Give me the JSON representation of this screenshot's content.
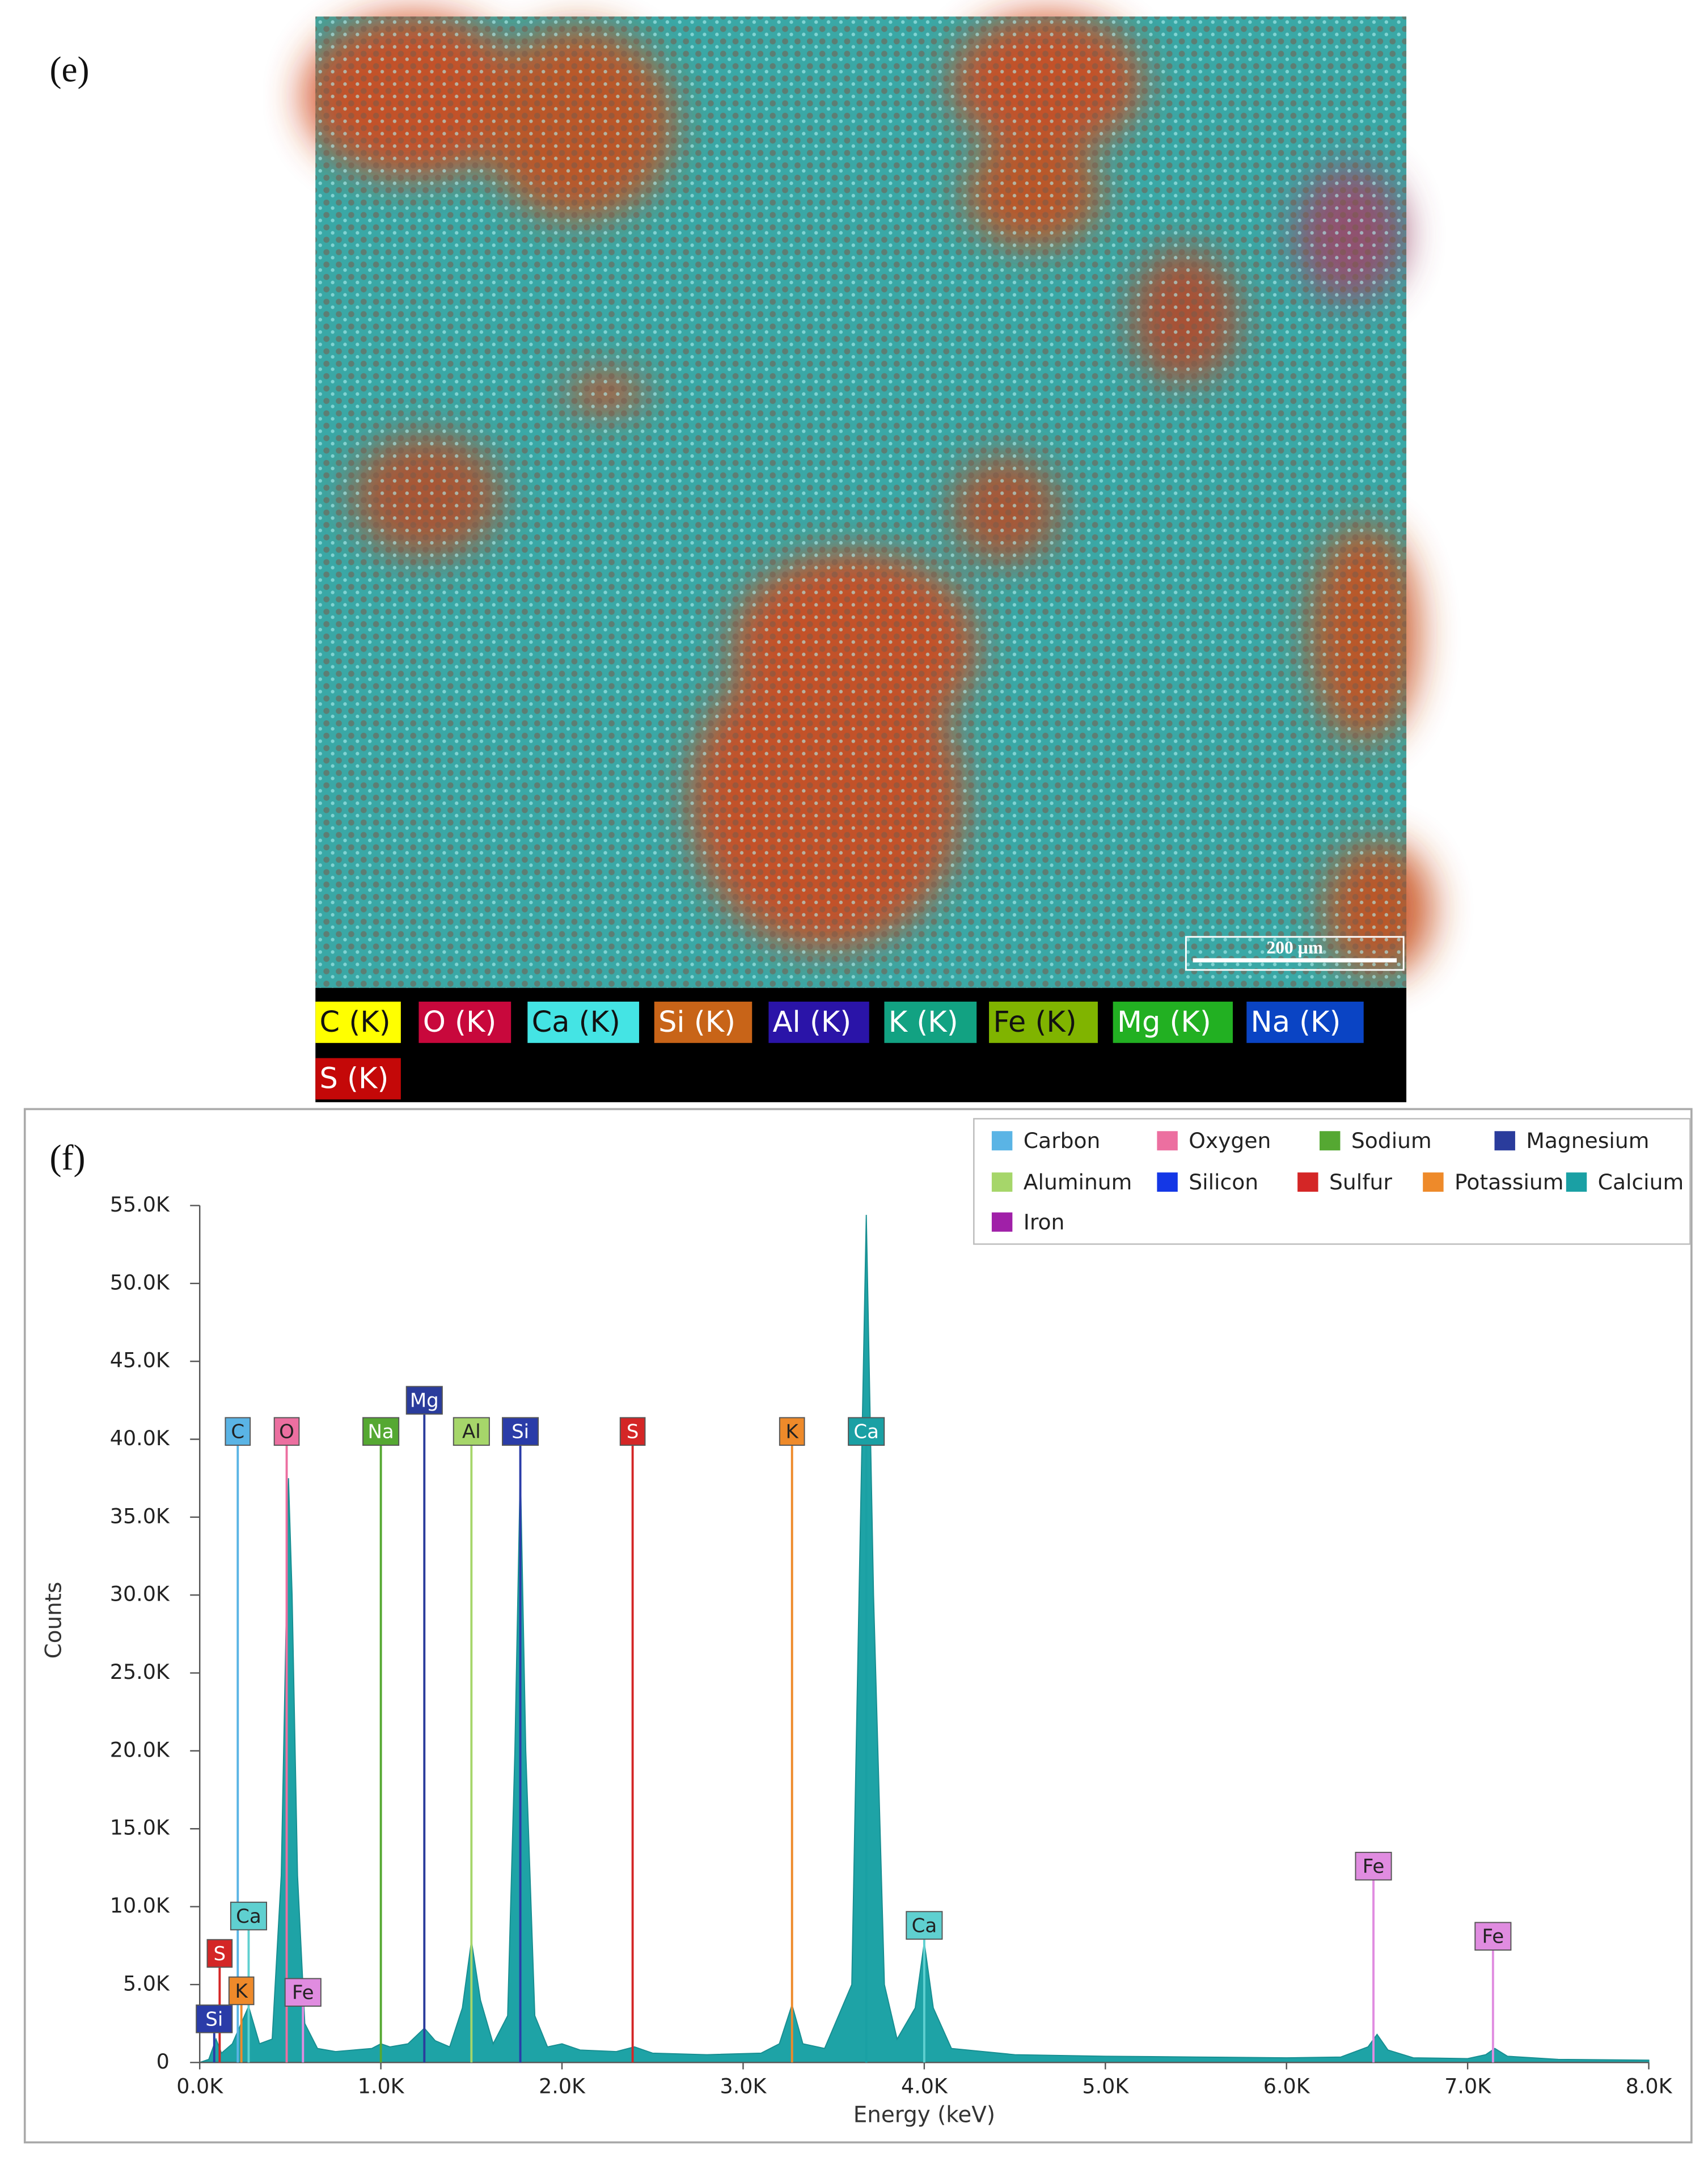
{
  "map": {
    "label": "(e)",
    "scale_bar": "200 µm",
    "legend": [
      {
        "name": "C (K)",
        "color": "#ffff00"
      },
      {
        "name": "O (K)",
        "color": "#c8083c"
      },
      {
        "name": "Ca (K)",
        "color": "#44e4e4"
      },
      {
        "name": "Si (K)",
        "color": "#c86418"
      },
      {
        "name": "Al (K)",
        "color": "#2a14a8"
      },
      {
        "name": "K (K)",
        "color": "#12a282"
      },
      {
        "name": "Fe (K)",
        "color": "#80b400"
      },
      {
        "name": "Mg (K)",
        "color": "#22b022"
      },
      {
        "name": "Na (K)",
        "color": "#0a44c4"
      },
      {
        "name": "S (K)",
        "color": "#c40808"
      }
    ]
  },
  "chart_data": {
    "type": "area",
    "panel_label": "(f)",
    "x_label": "Energy (keV)",
    "y_label": "Counts",
    "color": "#1ea3a6",
    "x": [
      0.0,
      0.05,
      0.09,
      0.12,
      0.18,
      0.27,
      0.33,
      0.4,
      0.45,
      0.48,
      0.49,
      0.51,
      0.54,
      0.58,
      0.65,
      0.75,
      0.85,
      0.95,
      1.0,
      1.05,
      1.15,
      1.24,
      1.3,
      1.38,
      1.45,
      1.5,
      1.55,
      1.62,
      1.7,
      1.74,
      1.77,
      1.8,
      1.85,
      1.92,
      2.0,
      2.1,
      2.3,
      2.4,
      2.5,
      2.8,
      3.1,
      3.2,
      3.27,
      3.33,
      3.45,
      3.6,
      3.64,
      3.68,
      3.72,
      3.78,
      3.85,
      3.95,
      4.0,
      4.05,
      4.15,
      4.5,
      5.0,
      5.5,
      6.0,
      6.3,
      6.45,
      6.5,
      6.56,
      6.7,
      7.0,
      7.1,
      7.15,
      7.22,
      7.5,
      8.0
    ],
    "values": [
      0,
      200,
      1500,
      600,
      1200,
      3600,
      1200,
      1500,
      12000,
      30000,
      37500,
      30000,
      12000,
      2500,
      900,
      700,
      800,
      900,
      1200,
      1000,
      1200,
      2200,
      1400,
      1000,
      3500,
      7800,
      4000,
      1200,
      3000,
      20000,
      38200,
      20000,
      3000,
      1000,
      1200,
      800,
      700,
      1000,
      600,
      500,
      600,
      1200,
      3700,
      1200,
      900,
      5000,
      30000,
      54400,
      30000,
      5000,
      1500,
      3500,
      7700,
      3500,
      900,
      500,
      400,
      350,
      300,
      350,
      1000,
      1800,
      800,
      300,
      250,
      500,
      900,
      400,
      200,
      150
    ],
    "xlim": [
      0,
      8
    ],
    "ylim": [
      0,
      55000
    ],
    "xticks": [
      {
        "value": 0,
        "label": "0.0K"
      },
      {
        "value": 1,
        "label": "1.0K"
      },
      {
        "value": 2,
        "label": "2.0K"
      },
      {
        "value": 3,
        "label": "3.0K"
      },
      {
        "value": 4,
        "label": "4.0K"
      },
      {
        "value": 5,
        "label": "5.0K"
      },
      {
        "value": 6,
        "label": "6.0K"
      },
      {
        "value": 7,
        "label": "7.0K"
      },
      {
        "value": 8,
        "label": "8.0K"
      }
    ],
    "yticks": [
      0,
      {
        "value": 5000,
        "label": "5.0K"
      },
      {
        "value": 10000,
        "label": "10.0K"
      },
      {
        "value": 15000,
        "label": "15.0K"
      },
      {
        "value": 20000,
        "label": "20.0K"
      },
      {
        "value": 25000,
        "label": "25.0K"
      },
      {
        "value": 30000,
        "label": "30.0K"
      },
      {
        "value": 35000,
        "label": "35.0K"
      },
      {
        "value": 40000,
        "label": "40.0K"
      },
      {
        "value": 45000,
        "label": "45.0K"
      },
      {
        "value": 50000,
        "label": "50.0K"
      },
      {
        "value": 55000,
        "label": "55.0K"
      }
    ],
    "legend_position": "upper right",
    "legend": [
      {
        "name": "Carbon",
        "color": "#5ab4e5"
      },
      {
        "name": "Oxygen",
        "color": "#ec6fa0"
      },
      {
        "name": "Sodium",
        "color": "#55a832"
      },
      {
        "name": "Magnesium",
        "color": "#2a3c9c"
      },
      {
        "name": "Aluminum",
        "color": "#a6d66a"
      },
      {
        "name": "Silicon",
        "color": "#1437e6"
      },
      {
        "name": "Sulfur",
        "color": "#d42626"
      },
      {
        "name": "Potassium",
        "color": "#ee8a2a"
      },
      {
        "name": "Calcium",
        "color": "#1aa0a4"
      },
      {
        "name": "Iron",
        "color": "#a020a8"
      }
    ],
    "annotations": [
      {
        "label": "C",
        "x": 0.21,
        "y": 40500,
        "color": "#5ab4e5"
      },
      {
        "label": "O",
        "x": 0.48,
        "y": 40500,
        "color": "#ec6fa0"
      },
      {
        "label": "Na",
        "x": 1.0,
        "y": 40500,
        "color": "#55a832"
      },
      {
        "label": "Mg",
        "x": 1.24,
        "y": 42500,
        "color": "#2a3c9c"
      },
      {
        "label": "Al",
        "x": 1.5,
        "y": 40500,
        "color": "#a6d66a"
      },
      {
        "label": "Si",
        "x": 1.77,
        "y": 40500,
        "color": "#2a3ca8"
      },
      {
        "label": "S",
        "x": 2.39,
        "y": 40500,
        "color": "#d42626"
      },
      {
        "label": "K",
        "x": 3.27,
        "y": 40500,
        "color": "#ee8a2a"
      },
      {
        "label": "Ca",
        "x": 3.68,
        "y": 40500,
        "color": "#1aa0a4"
      },
      {
        "label": "Ca",
        "x": 0.27,
        "y": 9400,
        "color": "#5fd0d0"
      },
      {
        "label": "S",
        "x": 0.11,
        "y": 7000,
        "color": "#d42626"
      },
      {
        "label": "K",
        "x": 0.23,
        "y": 4600,
        "color": "#ee8a2a"
      },
      {
        "label": "Fe",
        "x": 0.57,
        "y": 4500,
        "color": "#e08ce0"
      },
      {
        "label": "Si",
        "x": 0.08,
        "y": 2800,
        "color": "#2a3ca8"
      },
      {
        "label": "Ca",
        "x": 4.0,
        "y": 8800,
        "color": "#5fd0d0"
      },
      {
        "label": "Fe",
        "x": 6.48,
        "y": 12600,
        "color": "#e08ce0"
      },
      {
        "label": "Fe",
        "x": 7.14,
        "y": 8100,
        "color": "#e08ce0"
      }
    ]
  }
}
